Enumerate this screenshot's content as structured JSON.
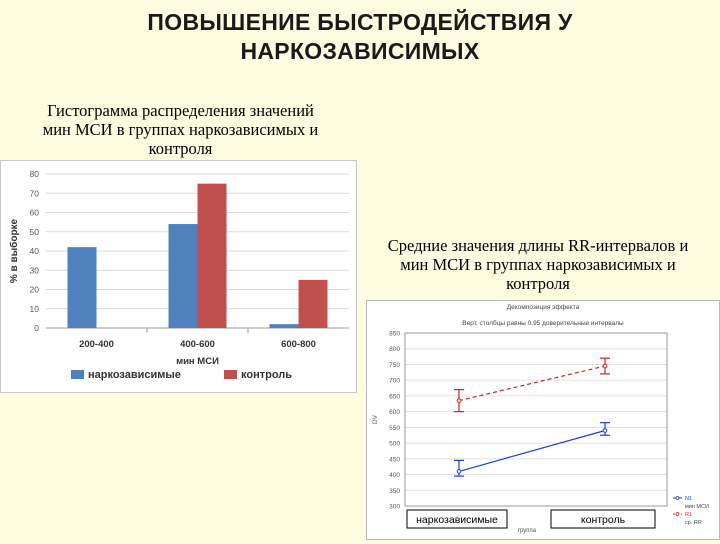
{
  "slide": {
    "title_line1": "ПОВЫШЕНИЕ БЫСТРОДЕЙСТВИЯ У",
    "title_line2": "НАРКОЗАВИСИМЫХ",
    "caption_left": [
      "Гистограмма распределения значений",
      "мин МСИ в группах наркозависимых и",
      "контроля"
    ],
    "caption_right": [
      "Средние значения длины RR-интервалов и",
      "мин МСИ в группах наркозависимых и",
      "контроля"
    ]
  },
  "chart_data": [
    {
      "type": "bar",
      "categories": [
        "200-400",
        "400-600",
        "600-800"
      ],
      "series": [
        {
          "name": "наркозависимые",
          "color": "#4f81bd",
          "values": [
            42,
            54,
            2
          ]
        },
        {
          "name": "контроль",
          "color": "#c0504d",
          "values": [
            0,
            75,
            25
          ]
        }
      ],
      "xlabel": "мин МСИ",
      "ylabel": "% в выборке",
      "ylim": [
        0,
        80
      ],
      "yticks": [
        0,
        10,
        20,
        30,
        40,
        50,
        60,
        70,
        80
      ],
      "grid": true,
      "legend_position": "bottom"
    },
    {
      "type": "line",
      "title": "Декомпозиция эффекта",
      "subtitle": "Верт. столбцы равны 0.95 доверительные интервалы",
      "categories": [
        "наркозависимые",
        "контроль"
      ],
      "series": [
        {
          "name": "N1",
          "color": "#1f3fd0",
          "style": "solid",
          "values": [
            410,
            540
          ],
          "ci": [
            [
              395,
              445
            ],
            [
              525,
              565
            ]
          ]
        },
        {
          "name": "R1",
          "color": "#d21f1f",
          "style": "dashed",
          "values": [
            635,
            745
          ],
          "ci": [
            [
              600,
              670
            ],
            [
              720,
              770
            ]
          ]
        }
      ],
      "legend": [
        {
          "text": "N1",
          "color": "#1f3fd0"
        },
        {
          "text": "мин МСИ",
          "color": "#444444"
        },
        {
          "text": "R1",
          "color": "#d21f1f"
        },
        {
          "text": "ср. RR",
          "color": "#444444"
        }
      ],
      "xlabel": "группа",
      "ylabel": "DV",
      "ylim": [
        300,
        850
      ],
      "yticks": [
        300,
        350,
        400,
        450,
        500,
        550,
        600,
        650,
        700,
        750,
        800,
        850
      ],
      "grid": true,
      "legend_position": "right"
    }
  ]
}
